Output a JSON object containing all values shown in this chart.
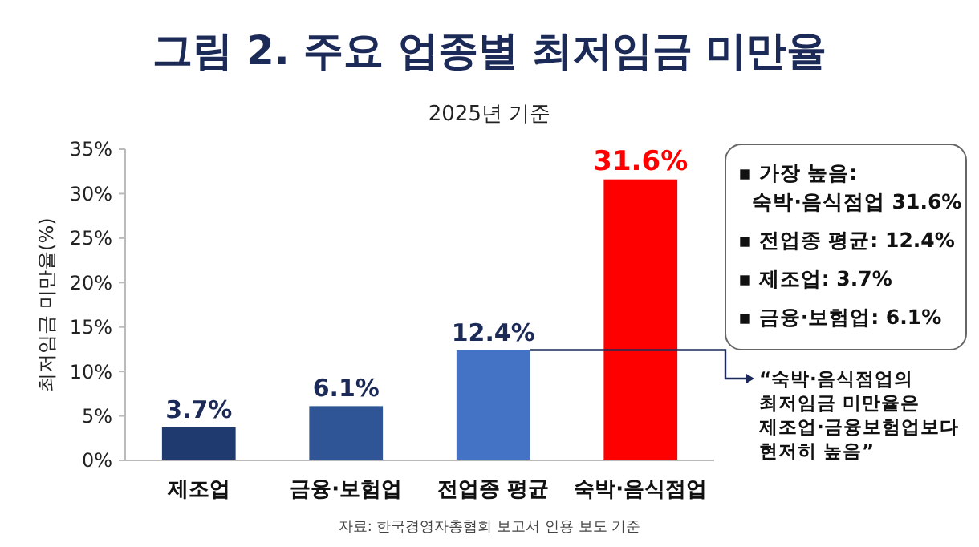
{
  "chart_data": {
    "type": "bar",
    "title": "그림 2. 주요 업종별 최저임금 미만율",
    "subtitle": "2025년 기준",
    "ylabel": "최저임금 미만율(%)",
    "categories": [
      "제조업",
      "금융·보험업",
      "전업종 평균",
      "숙박·음식점업"
    ],
    "values": [
      3.7,
      6.1,
      12.4,
      31.6
    ],
    "colors": [
      "#1f3a6e",
      "#2f5597",
      "#4472c4",
      "#ff0000"
    ],
    "value_labels": [
      "3.7%",
      "6.1%",
      "12.4%",
      "31.6%"
    ],
    "ylim": [
      0,
      35
    ],
    "yticks": [
      {
        "value": 0,
        "label": "0%"
      },
      {
        "value": 5,
        "label": "5%"
      },
      {
        "value": 10,
        "label": "10%"
      },
      {
        "value": 15,
        "label": "15%"
      },
      {
        "value": 20,
        "label": "20%"
      },
      {
        "value": 25,
        "label": "25%"
      },
      {
        "value": 30,
        "label": "30%"
      },
      {
        "value": 35,
        "label": "35%"
      }
    ],
    "annotations": [
      "▪ 가장 높음:\n  숙박·음식점업 31.6%",
      "▪ 전업종 평균: 12.4%",
      "▪ 제조업: 3.7%",
      "▪ 금융·보험업: 6.1%",
      "“숙박·음식점업의\n최저임금 미만율은\n제조업·금융보험업보다\n현저히 높음”",
      "자료: 한국경영자총협회 보고서 인용 보도 기준"
    ]
  }
}
